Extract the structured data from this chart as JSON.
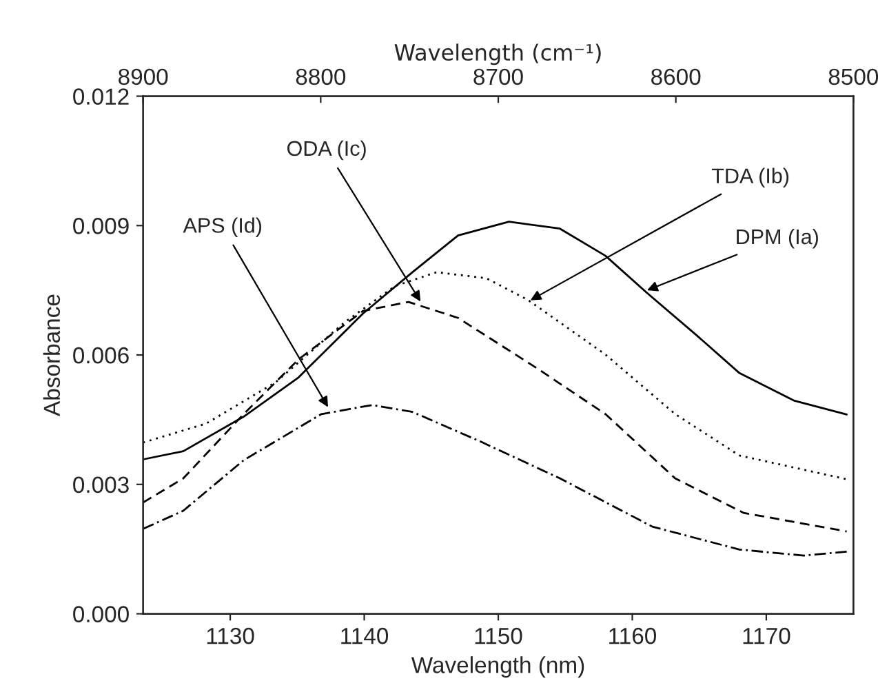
{
  "chart_data": {
    "type": "line",
    "xlabel": "Wavelength (nm)",
    "ylabel": "Absorbance",
    "x2label": "Wavelength (cm⁻¹)",
    "xlim": [
      1123.5,
      1176.5
    ],
    "xticks": [
      1130,
      1140,
      1150,
      1160,
      1170
    ],
    "x2lim": [
      8900,
      8500
    ],
    "x2ticks": [
      8900,
      8800,
      8700,
      8600,
      8500
    ],
    "ylim": [
      0,
      0.012
    ],
    "yticks": [
      {
        "value": 0,
        "label": "0.000"
      },
      0.003,
      0.006,
      0.009,
      0.012
    ],
    "grid": false,
    "marker": "none",
    "series": [
      {
        "color": "#000000",
        "line_style": "solid",
        "x": [
          1123.5,
          1126.5,
          1131.0,
          1135.1,
          1139.9,
          1143.6,
          1147.0,
          1150.8,
          1154.6,
          1158.0,
          1161.1,
          1164.9,
          1168.0,
          1172.1,
          1176.0
        ],
        "values": [
          0.00358,
          0.00377,
          0.00457,
          0.00548,
          0.00696,
          0.00792,
          0.00877,
          0.00909,
          0.00893,
          0.0083,
          0.00744,
          0.00643,
          0.00558,
          0.00494,
          0.00462
        ]
      },
      {
        "color": "#000000",
        "line_style": "dotted",
        "x": [
          1123.5,
          1128.2,
          1133.4,
          1138.5,
          1142.3,
          1145.4,
          1149.1,
          1152.2,
          1158.0,
          1163.2,
          1168.0,
          1176.0
        ],
        "values": [
          0.00397,
          0.00441,
          0.00537,
          0.00675,
          0.0076,
          0.00792,
          0.00778,
          0.00728,
          0.00601,
          0.00463,
          0.00367,
          0.00312
        ]
      },
      {
        "color": "#000000",
        "line_style": "dashed",
        "x": [
          1123.5,
          1126.5,
          1131.0,
          1135.1,
          1139.9,
          1143.3,
          1147.0,
          1152.9,
          1158.0,
          1163.2,
          1168.3,
          1176.0
        ],
        "values": [
          0.00258,
          0.00314,
          0.00463,
          0.0059,
          0.00702,
          0.00723,
          0.00686,
          0.00569,
          0.00463,
          0.00314,
          0.00234,
          0.00191
        ]
      },
      {
        "color": "#000000",
        "line_style": "dashdot",
        "x": [
          1123.5,
          1126.5,
          1131.0,
          1136.8,
          1140.6,
          1143.6,
          1148.7,
          1154.6,
          1161.5,
          1168.0,
          1172.8,
          1176.0
        ],
        "values": [
          0.00197,
          0.00239,
          0.00356,
          0.00463,
          0.00484,
          0.00468,
          0.00399,
          0.00314,
          0.00202,
          0.00149,
          0.00135,
          0.00144
        ]
      }
    ],
    "annotations": [
      {
        "text": "ODA (Ic)",
        "x": 1144.2,
        "y": 0.00724
      },
      {
        "text": "APS (Id)",
        "x": 1137.3,
        "y": 0.00479
      },
      {
        "text": "TDA (Ib)",
        "x": 1152.4,
        "y": 0.00727
      },
      {
        "text": "DPM (Ia)",
        "x": 1161.1,
        "y": 0.0075
      }
    ]
  }
}
